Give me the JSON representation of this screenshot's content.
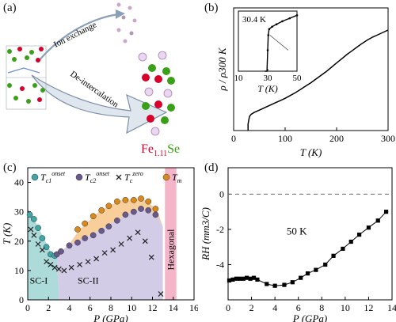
{
  "panels": {
    "a": {
      "label": "(a)",
      "arrow_top": "Ion exchange",
      "arrow_bottom": "De-intercalation",
      "formula_fe": "Fe",
      "formula_sub": "1.11",
      "formula_se": "Se",
      "colors": {
        "fe": "#d8002a",
        "se": "#3aa018",
        "arrow": "#7c8fa8"
      }
    },
    "b": {
      "label": "(b)"
    },
    "c": {
      "label": "(c)"
    },
    "d": {
      "label": "(d)"
    }
  },
  "chart_data": [
    {
      "id": "b",
      "type": "line",
      "xlabel": "T (K)",
      "ylabel": "ρ / ρ300 K",
      "xlim": [
        0,
        300
      ],
      "xticks": [
        0,
        100,
        200,
        300
      ],
      "series": [
        {
          "x": [
            28,
            29.5,
            31,
            34,
            40,
            50,
            60,
            70,
            80,
            90,
            100,
            110,
            120,
            130,
            140,
            150,
            160,
            170,
            180,
            190,
            200,
            210,
            220,
            230,
            240,
            250,
            260,
            270,
            280,
            290,
            300
          ],
          "y": [
            0.0,
            0.05,
            0.085,
            0.105,
            0.125,
            0.15,
            0.175,
            0.2,
            0.225,
            0.25,
            0.275,
            0.305,
            0.335,
            0.37,
            0.405,
            0.44,
            0.48,
            0.52,
            0.56,
            0.605,
            0.65,
            0.695,
            0.74,
            0.78,
            0.82,
            0.86,
            0.895,
            0.925,
            0.95,
            0.975,
            1.0
          ]
        }
      ],
      "inset": {
        "xlabel": "T (K)",
        "xlim": [
          10,
          50
        ],
        "xticks": [
          10,
          30,
          50
        ],
        "annotation": "30.4 K",
        "x": [
          28,
          29.5,
          30,
          30.4,
          31,
          33,
          36,
          40,
          45,
          50
        ],
        "y": [
          0.0,
          0.0,
          0.35,
          0.6,
          0.7,
          0.74,
          0.78,
          0.83,
          0.88,
          0.93
        ]
      }
    },
    {
      "id": "c",
      "type": "scatter",
      "xlabel": "P (GPa)",
      "ylabel": "T (K)",
      "xlim": [
        0,
        16
      ],
      "ylim": [
        0,
        45
      ],
      "xticks": [
        0,
        2,
        4,
        6,
        8,
        10,
        12,
        14,
        16
      ],
      "yticks": [
        0,
        10,
        20,
        30,
        40
      ],
      "legend": [
        {
          "symbol": "T",
          "sub": "c1",
          "sup": "onset",
          "color": "#3fa7a7"
        },
        {
          "symbol": "T",
          "sub": "c2",
          "sup": "onset",
          "color": "#6a5a8c"
        },
        {
          "symbol": "T",
          "sub": "c",
          "sup": "zero",
          "color": "#222222"
        },
        {
          "symbol": "T",
          "sub": "m",
          "sup": "",
          "color": "#d98a1a"
        }
      ],
      "series": [
        {
          "name": "Tc1 onset",
          "marker": "circle",
          "color": "#3fa7a7",
          "x": [
            0.2,
            0.6,
            1.0,
            1.4,
            1.8,
            2.2,
            2.6
          ],
          "y": [
            29,
            27.5,
            24.5,
            21,
            18,
            15.5,
            15
          ]
        },
        {
          "name": "Tc2 onset",
          "marker": "circle",
          "color": "#6a5a8c",
          "x": [
            2.8,
            3.2,
            4.0,
            4.8,
            5.5,
            6.3,
            7.1,
            7.8,
            8.6,
            9.4,
            10.2,
            10.9,
            11.6,
            12.3
          ],
          "y": [
            15.5,
            16.5,
            18.5,
            19.5,
            21,
            22,
            23.5,
            25,
            27,
            29,
            30,
            31,
            30.5,
            29
          ]
        },
        {
          "name": "Tc zero",
          "marker": "x",
          "color": "#222222",
          "x": [
            0.3,
            0.6,
            1.0,
            1.4,
            1.8,
            2.2,
            2.6,
            3.0,
            3.5,
            4.2,
            5.0,
            5.8,
            6.6,
            7.4,
            8.2,
            9.0,
            9.8,
            10.6,
            11.3,
            11.9,
            12.8
          ],
          "y": [
            24,
            22,
            19,
            17,
            13,
            12,
            11,
            10.5,
            10,
            11,
            12,
            13,
            14,
            16,
            17,
            19,
            21,
            23,
            20,
            14.5,
            2
          ]
        },
        {
          "name": "Tm",
          "marker": "circle",
          "color": "#d98a1a",
          "x": [
            4.8,
            5.5,
            6.3,
            7.1,
            7.8,
            8.6,
            9.4,
            10.2,
            10.9,
            11.6,
            12.3
          ],
          "y": [
            24,
            26,
            28.5,
            30.5,
            32,
            33.5,
            34,
            34,
            34.5,
            33.5,
            31
          ]
        }
      ],
      "regions": [
        {
          "label": "SC-I",
          "color": "#9fd5d3"
        },
        {
          "label": "SC-II",
          "color": "#c8bfe0"
        },
        {
          "label": "Hexagonal",
          "color": "#f2a8bf"
        }
      ]
    },
    {
      "id": "d",
      "type": "line",
      "xlabel": "P (GPa)",
      "ylabel": "RH (mm3/C)",
      "xlim": [
        0,
        14
      ],
      "ylim": [
        -6,
        1.5
      ],
      "xticks": [
        0,
        2,
        4,
        6,
        8,
        10,
        12,
        14
      ],
      "yticks": [
        0,
        -2,
        -4
      ],
      "annotation": "50 K",
      "series": [
        {
          "name": "RH",
          "marker": "square",
          "x": [
            0.1,
            0.4,
            0.7,
            1.0,
            1.3,
            1.6,
            1.9,
            2.2,
            2.5,
            3.3,
            4.0,
            4.8,
            5.5,
            6.2,
            6.8,
            7.5,
            8.3,
            9.0,
            9.8,
            10.5,
            11.2,
            12.0,
            12.8,
            13.5
          ],
          "y": [
            -4.9,
            -4.85,
            -4.8,
            -4.8,
            -4.8,
            -4.75,
            -4.8,
            -4.75,
            -4.85,
            -5.1,
            -5.2,
            -5.15,
            -5.0,
            -4.75,
            -4.5,
            -4.3,
            -4.0,
            -3.5,
            -3.1,
            -2.7,
            -2.3,
            -1.9,
            -1.5,
            -1.0
          ]
        }
      ]
    }
  ]
}
